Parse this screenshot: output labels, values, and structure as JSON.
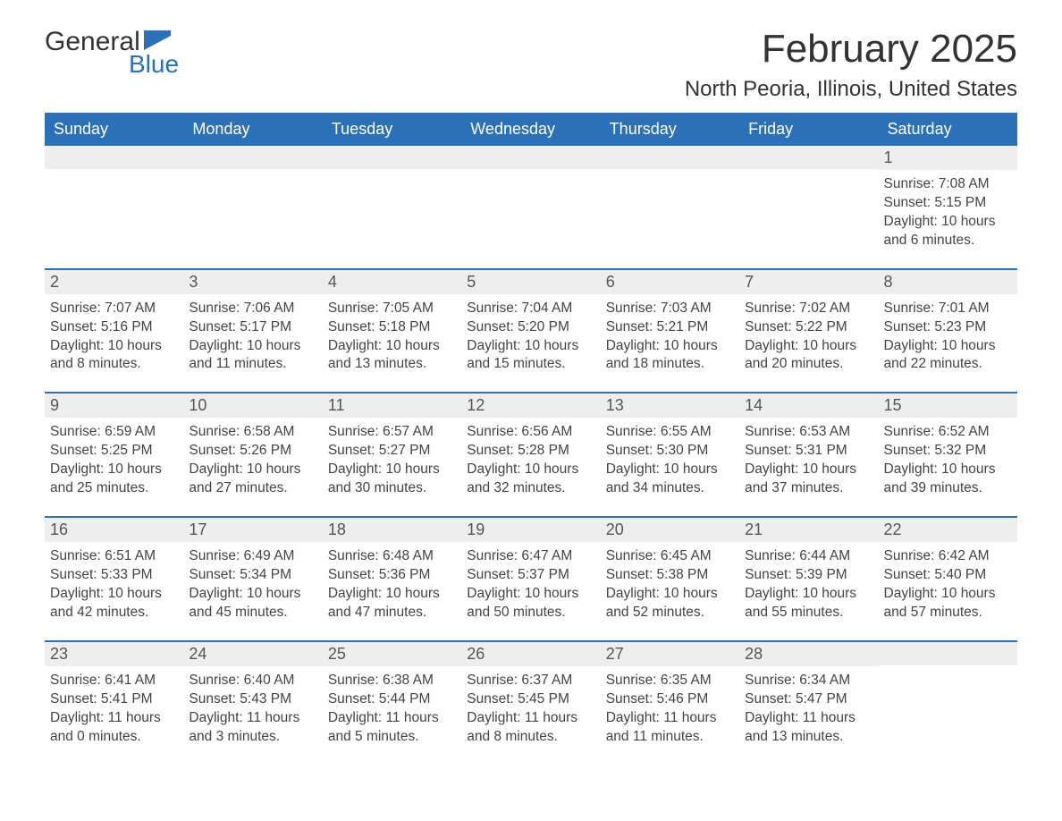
{
  "logo": {
    "text_general": "General",
    "text_blue": "Blue",
    "flag_color": "#2a71b8"
  },
  "title": "February 2025",
  "location": "North Peoria, Illinois, United States",
  "colors": {
    "header_bg": "#2a71b8",
    "header_text": "#ffffff",
    "daynum_bg": "#eeeeee",
    "body_text": "#444444"
  },
  "days_of_week": [
    "Sunday",
    "Monday",
    "Tuesday",
    "Wednesday",
    "Thursday",
    "Friday",
    "Saturday"
  ],
  "weeks": [
    [
      null,
      null,
      null,
      null,
      null,
      null,
      {
        "n": "1",
        "sunrise": "Sunrise: 7:08 AM",
        "sunset": "Sunset: 5:15 PM",
        "daylight": "Daylight: 10 hours and 6 minutes."
      }
    ],
    [
      {
        "n": "2",
        "sunrise": "Sunrise: 7:07 AM",
        "sunset": "Sunset: 5:16 PM",
        "daylight": "Daylight: 10 hours and 8 minutes."
      },
      {
        "n": "3",
        "sunrise": "Sunrise: 7:06 AM",
        "sunset": "Sunset: 5:17 PM",
        "daylight": "Daylight: 10 hours and 11 minutes."
      },
      {
        "n": "4",
        "sunrise": "Sunrise: 7:05 AM",
        "sunset": "Sunset: 5:18 PM",
        "daylight": "Daylight: 10 hours and 13 minutes."
      },
      {
        "n": "5",
        "sunrise": "Sunrise: 7:04 AM",
        "sunset": "Sunset: 5:20 PM",
        "daylight": "Daylight: 10 hours and 15 minutes."
      },
      {
        "n": "6",
        "sunrise": "Sunrise: 7:03 AM",
        "sunset": "Sunset: 5:21 PM",
        "daylight": "Daylight: 10 hours and 18 minutes."
      },
      {
        "n": "7",
        "sunrise": "Sunrise: 7:02 AM",
        "sunset": "Sunset: 5:22 PM",
        "daylight": "Daylight: 10 hours and 20 minutes."
      },
      {
        "n": "8",
        "sunrise": "Sunrise: 7:01 AM",
        "sunset": "Sunset: 5:23 PM",
        "daylight": "Daylight: 10 hours and 22 minutes."
      }
    ],
    [
      {
        "n": "9",
        "sunrise": "Sunrise: 6:59 AM",
        "sunset": "Sunset: 5:25 PM",
        "daylight": "Daylight: 10 hours and 25 minutes."
      },
      {
        "n": "10",
        "sunrise": "Sunrise: 6:58 AM",
        "sunset": "Sunset: 5:26 PM",
        "daylight": "Daylight: 10 hours and 27 minutes."
      },
      {
        "n": "11",
        "sunrise": "Sunrise: 6:57 AM",
        "sunset": "Sunset: 5:27 PM",
        "daylight": "Daylight: 10 hours and 30 minutes."
      },
      {
        "n": "12",
        "sunrise": "Sunrise: 6:56 AM",
        "sunset": "Sunset: 5:28 PM",
        "daylight": "Daylight: 10 hours and 32 minutes."
      },
      {
        "n": "13",
        "sunrise": "Sunrise: 6:55 AM",
        "sunset": "Sunset: 5:30 PM",
        "daylight": "Daylight: 10 hours and 34 minutes."
      },
      {
        "n": "14",
        "sunrise": "Sunrise: 6:53 AM",
        "sunset": "Sunset: 5:31 PM",
        "daylight": "Daylight: 10 hours and 37 minutes."
      },
      {
        "n": "15",
        "sunrise": "Sunrise: 6:52 AM",
        "sunset": "Sunset: 5:32 PM",
        "daylight": "Daylight: 10 hours and 39 minutes."
      }
    ],
    [
      {
        "n": "16",
        "sunrise": "Sunrise: 6:51 AM",
        "sunset": "Sunset: 5:33 PM",
        "daylight": "Daylight: 10 hours and 42 minutes."
      },
      {
        "n": "17",
        "sunrise": "Sunrise: 6:49 AM",
        "sunset": "Sunset: 5:34 PM",
        "daylight": "Daylight: 10 hours and 45 minutes."
      },
      {
        "n": "18",
        "sunrise": "Sunrise: 6:48 AM",
        "sunset": "Sunset: 5:36 PM",
        "daylight": "Daylight: 10 hours and 47 minutes."
      },
      {
        "n": "19",
        "sunrise": "Sunrise: 6:47 AM",
        "sunset": "Sunset: 5:37 PM",
        "daylight": "Daylight: 10 hours and 50 minutes."
      },
      {
        "n": "20",
        "sunrise": "Sunrise: 6:45 AM",
        "sunset": "Sunset: 5:38 PM",
        "daylight": "Daylight: 10 hours and 52 minutes."
      },
      {
        "n": "21",
        "sunrise": "Sunrise: 6:44 AM",
        "sunset": "Sunset: 5:39 PM",
        "daylight": "Daylight: 10 hours and 55 minutes."
      },
      {
        "n": "22",
        "sunrise": "Sunrise: 6:42 AM",
        "sunset": "Sunset: 5:40 PM",
        "daylight": "Daylight: 10 hours and 57 minutes."
      }
    ],
    [
      {
        "n": "23",
        "sunrise": "Sunrise: 6:41 AM",
        "sunset": "Sunset: 5:41 PM",
        "daylight": "Daylight: 11 hours and 0 minutes."
      },
      {
        "n": "24",
        "sunrise": "Sunrise: 6:40 AM",
        "sunset": "Sunset: 5:43 PM",
        "daylight": "Daylight: 11 hours and 3 minutes."
      },
      {
        "n": "25",
        "sunrise": "Sunrise: 6:38 AM",
        "sunset": "Sunset: 5:44 PM",
        "daylight": "Daylight: 11 hours and 5 minutes."
      },
      {
        "n": "26",
        "sunrise": "Sunrise: 6:37 AM",
        "sunset": "Sunset: 5:45 PM",
        "daylight": "Daylight: 11 hours and 8 minutes."
      },
      {
        "n": "27",
        "sunrise": "Sunrise: 6:35 AM",
        "sunset": "Sunset: 5:46 PM",
        "daylight": "Daylight: 11 hours and 11 minutes."
      },
      {
        "n": "28",
        "sunrise": "Sunrise: 6:34 AM",
        "sunset": "Sunset: 5:47 PM",
        "daylight": "Daylight: 11 hours and 13 minutes."
      },
      null
    ]
  ]
}
